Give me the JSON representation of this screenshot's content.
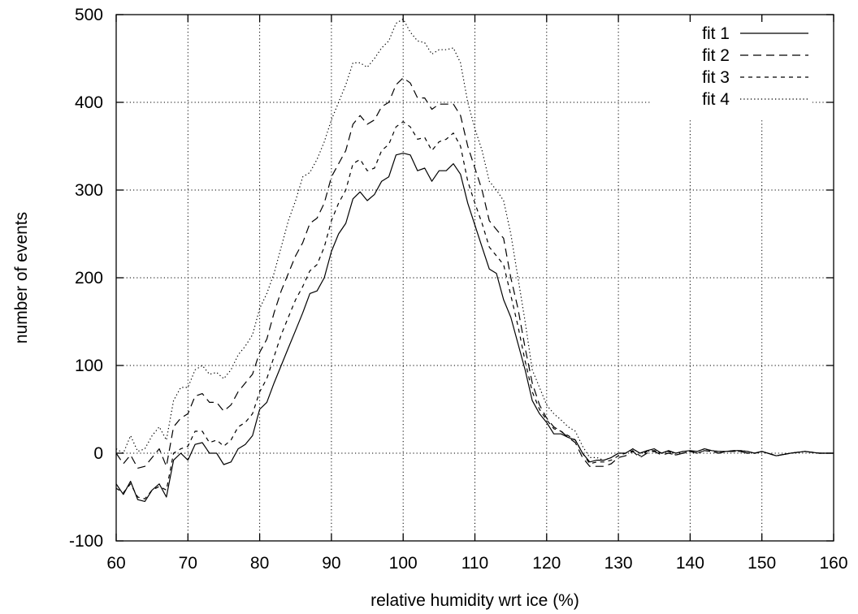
{
  "chart_data": {
    "type": "line",
    "title": "",
    "xlabel": "relative humidity wrt ice (%)",
    "ylabel": "number of events",
    "xlim": [
      60,
      160
    ],
    "ylim": [
      -100,
      500
    ],
    "x_ticks": [
      60,
      70,
      80,
      90,
      100,
      110,
      120,
      130,
      140,
      150,
      160
    ],
    "y_ticks": [
      -100,
      0,
      100,
      200,
      300,
      400,
      500
    ],
    "grid": true,
    "legend_position": "top-right",
    "series": [
      {
        "name": "fit 1",
        "dash": "solid",
        "x": [
          60,
          61,
          62,
          63,
          64,
          65,
          66,
          67,
          68,
          69,
          70,
          71,
          72,
          73,
          74,
          75,
          76,
          77,
          78,
          79,
          80,
          81,
          82,
          83,
          84,
          85,
          86,
          87,
          88,
          89,
          90,
          91,
          92,
          93,
          94,
          95,
          96,
          97,
          98,
          99,
          100,
          101,
          102,
          103,
          104,
          105,
          106,
          107,
          108,
          109,
          110,
          111,
          112,
          113,
          114,
          115,
          116,
          117,
          118,
          119,
          120,
          121,
          122,
          123,
          124,
          125,
          126,
          127,
          128,
          129,
          130,
          131,
          132,
          133,
          134,
          135,
          136,
          137,
          138,
          139,
          140,
          141,
          142,
          143,
          144,
          145,
          146,
          147,
          148,
          149,
          150,
          152,
          154,
          156,
          158,
          160
        ],
        "y": [
          -35,
          -47,
          -32,
          -53,
          -55,
          -42,
          -35,
          -50,
          -8,
          0,
          -8,
          10,
          12,
          0,
          0,
          -13,
          -10,
          5,
          10,
          20,
          50,
          58,
          80,
          100,
          120,
          140,
          160,
          182,
          185,
          200,
          230,
          250,
          262,
          290,
          298,
          288,
          295,
          310,
          315,
          340,
          342,
          340,
          322,
          325,
          310,
          322,
          322,
          330,
          318,
          285,
          260,
          235,
          210,
          205,
          175,
          155,
          125,
          95,
          60,
          45,
          35,
          22,
          22,
          18,
          15,
          0,
          -10,
          -8,
          -8,
          -5,
          0,
          0,
          5,
          0,
          3,
          5,
          0,
          3,
          0,
          2,
          3,
          2,
          5,
          3,
          2,
          2,
          3,
          3,
          2,
          0,
          2,
          -3,
          0,
          2,
          0,
          0
        ]
      },
      {
        "name": "fit 2",
        "dash": "long-dash",
        "x": [
          60,
          61,
          62,
          63,
          64,
          65,
          66,
          67,
          68,
          69,
          70,
          71,
          72,
          73,
          74,
          75,
          76,
          77,
          78,
          79,
          80,
          81,
          82,
          83,
          84,
          85,
          86,
          87,
          88,
          89,
          90,
          91,
          92,
          93,
          94,
          95,
          96,
          97,
          98,
          99,
          100,
          101,
          102,
          103,
          104,
          105,
          106,
          107,
          108,
          109,
          110,
          111,
          112,
          113,
          114,
          115,
          116,
          117,
          118,
          119,
          120,
          121,
          122,
          123,
          124,
          125,
          126,
          127,
          128,
          129,
          130,
          131,
          132,
          133,
          134,
          135,
          136,
          137,
          138,
          139,
          140,
          141,
          142,
          143,
          144,
          145,
          146,
          147,
          148,
          149,
          150,
          152,
          154,
          156,
          158,
          160
        ],
        "y": [
          0,
          -12,
          -2,
          -17,
          -15,
          -5,
          5,
          -15,
          30,
          40,
          45,
          65,
          68,
          58,
          58,
          48,
          55,
          70,
          80,
          90,
          115,
          130,
          160,
          185,
          205,
          225,
          240,
          262,
          268,
          285,
          315,
          330,
          345,
          375,
          385,
          375,
          380,
          395,
          400,
          420,
          428,
          422,
          405,
          405,
          392,
          398,
          398,
          398,
          385,
          350,
          325,
          300,
          265,
          255,
          245,
          200,
          165,
          120,
          80,
          55,
          40,
          30,
          25,
          18,
          12,
          -5,
          -15,
          -15,
          -15,
          -12,
          -5,
          -3,
          2,
          -5,
          0,
          2,
          -2,
          0,
          -2,
          0,
          2,
          0,
          3,
          2,
          0,
          2,
          2,
          2,
          0,
          0,
          2,
          -3,
          0,
          2,
          0,
          0
        ]
      },
      {
        "name": "fit 3",
        "dash": "short-dash",
        "x": [
          60,
          61,
          62,
          63,
          64,
          65,
          66,
          67,
          68,
          69,
          70,
          71,
          72,
          73,
          74,
          75,
          76,
          77,
          78,
          79,
          80,
          81,
          82,
          83,
          84,
          85,
          86,
          87,
          88,
          89,
          90,
          91,
          92,
          93,
          94,
          95,
          96,
          97,
          98,
          99,
          100,
          101,
          102,
          103,
          104,
          105,
          106,
          107,
          108,
          109,
          110,
          111,
          112,
          113,
          114,
          115,
          116,
          117,
          118,
          119,
          120,
          121,
          122,
          123,
          124,
          125,
          126,
          127,
          128,
          129,
          130,
          131,
          132,
          133,
          134,
          135,
          136,
          137,
          138,
          139,
          140,
          141,
          142,
          143,
          144,
          145,
          146,
          147,
          148,
          149,
          150,
          152,
          154,
          156,
          158,
          160
        ],
        "y": [
          -40,
          -45,
          -35,
          -50,
          -52,
          -42,
          -38,
          -42,
          0,
          5,
          8,
          25,
          25,
          12,
          15,
          8,
          15,
          30,
          35,
          45,
          70,
          85,
          110,
          135,
          155,
          175,
          190,
          208,
          215,
          235,
          265,
          285,
          300,
          330,
          335,
          322,
          325,
          345,
          352,
          372,
          378,
          372,
          358,
          360,
          345,
          355,
          358,
          365,
          350,
          310,
          285,
          262,
          235,
          225,
          215,
          180,
          145,
          105,
          70,
          50,
          38,
          28,
          25,
          20,
          15,
          0,
          -12,
          -10,
          -10,
          -8,
          -3,
          0,
          3,
          -3,
          2,
          3,
          0,
          2,
          -2,
          0,
          2,
          0,
          3,
          2,
          0,
          2,
          2,
          2,
          0,
          0,
          2,
          -3,
          0,
          2,
          0,
          0
        ]
      },
      {
        "name": "fit 4",
        "dash": "dotted",
        "x": [
          60,
          61,
          62,
          63,
          64,
          65,
          66,
          67,
          68,
          69,
          70,
          71,
          72,
          73,
          74,
          75,
          76,
          77,
          78,
          79,
          80,
          81,
          82,
          83,
          84,
          85,
          86,
          87,
          88,
          89,
          90,
          91,
          92,
          93,
          94,
          95,
          96,
          97,
          98,
          99,
          100,
          101,
          102,
          103,
          104,
          105,
          106,
          107,
          108,
          109,
          110,
          111,
          112,
          113,
          114,
          115,
          116,
          117,
          118,
          119,
          120,
          121,
          122,
          123,
          124,
          125,
          126,
          127,
          128,
          129,
          130,
          131,
          132,
          133,
          134,
          135,
          136,
          137,
          138,
          139,
          140,
          141,
          142,
          143,
          144,
          145,
          146,
          147,
          148,
          149,
          150,
          152,
          154,
          156,
          158,
          160
        ],
        "y": [
          5,
          0,
          20,
          2,
          5,
          20,
          30,
          15,
          60,
          75,
          75,
          95,
          100,
          90,
          92,
          85,
          95,
          112,
          122,
          135,
          165,
          182,
          205,
          235,
          265,
          288,
          315,
          320,
          335,
          355,
          380,
          400,
          420,
          445,
          445,
          440,
          450,
          462,
          470,
          490,
          495,
          480,
          470,
          468,
          455,
          460,
          460,
          462,
          445,
          400,
          370,
          345,
          310,
          300,
          288,
          250,
          200,
          150,
          95,
          75,
          55,
          45,
          38,
          30,
          25,
          8,
          -5,
          -5,
          -8,
          -5,
          0,
          0,
          5,
          0,
          2,
          3,
          0,
          2,
          0,
          2,
          2,
          2,
          5,
          3,
          2,
          2,
          3,
          3,
          2,
          0,
          2,
          -3,
          0,
          2,
          0,
          0
        ]
      }
    ]
  }
}
